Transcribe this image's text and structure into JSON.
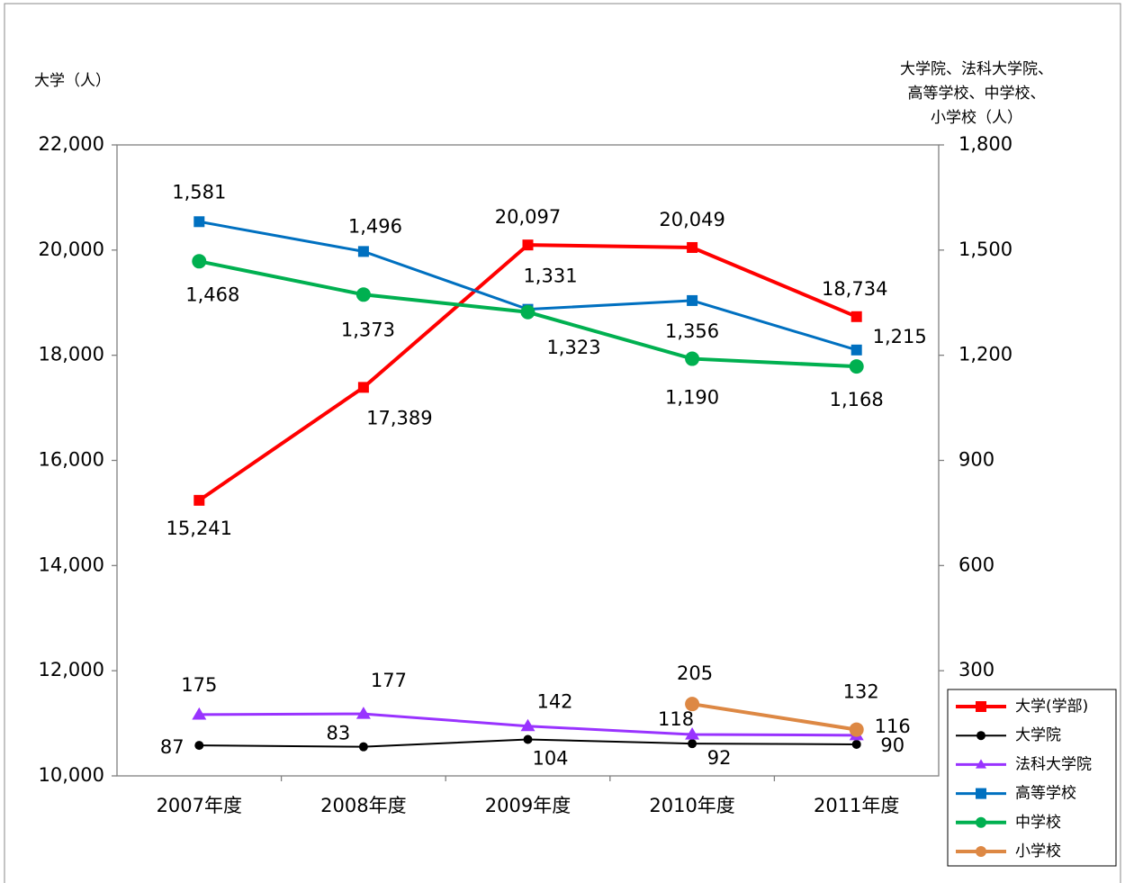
{
  "chart_data": {
    "type": "line",
    "ylabel": "大学（人）",
    "y2label": [
      "大学院、法科大学院、",
      "高等学校、中学校、",
      "小学校（人）"
    ],
    "categories": [
      "2007年度",
      "2008年度",
      "2009年度",
      "2010年度",
      "2011年度"
    ],
    "ylim": [
      10000,
      22000
    ],
    "yticks": [
      {
        "value": 10000,
        "label": "10,000"
      },
      {
        "value": 12000,
        "label": "12,000"
      },
      {
        "value": 14000,
        "label": "14,000"
      },
      {
        "value": 16000,
        "label": "16,000"
      },
      {
        "value": 18000,
        "label": "18,000"
      },
      {
        "value": 20000,
        "label": "20,000"
      },
      {
        "value": 22000,
        "label": "22,000"
      }
    ],
    "y2lim": [
      0,
      1800
    ],
    "y2ticks": [
      300,
      600,
      900,
      {
        "value": 1200,
        "label": "1,200"
      },
      {
        "value": 1500,
        "label": "1,500"
      },
      {
        "value": 1800,
        "label": "1,800"
      }
    ],
    "legend": "lower right",
    "series": [
      {
        "name": "大学(学部)",
        "color": "#ff0000",
        "marker": "square",
        "values": [
          15241,
          17389,
          20097,
          20049,
          18734
        ],
        "value_labels": [
          "15,241",
          "17,389",
          "20,097",
          "20,049",
          "18,734"
        ]
      },
      {
        "name": "大学院",
        "color": "#000000",
        "marker": "circle",
        "axis": "y2",
        "values": [
          87,
          83,
          104,
          92,
          90
        ]
      },
      {
        "name": "法科大学院",
        "color": "#9933ff",
        "marker": "triangle",
        "axis": "y2",
        "values": [
          175,
          177,
          142,
          118,
          116
        ]
      },
      {
        "name": "高等学校",
        "color": "#0070c0",
        "marker": "square",
        "axis": "y2",
        "values": [
          1581,
          1496,
          1331,
          1356,
          1215
        ],
        "value_labels": [
          "1,581",
          "1,496",
          "1,331",
          "1,356",
          "1,215"
        ]
      },
      {
        "name": "中学校",
        "color": "#00b050",
        "marker": "circle",
        "axis": "y2",
        "values": [
          1468,
          1373,
          1323,
          1190,
          1168
        ],
        "value_labels": [
          "1,468",
          "1,373",
          "1,323",
          "1,190",
          "1,168"
        ]
      },
      {
        "name": "小学校",
        "color": "#dd8844",
        "marker": "circle",
        "axis": "y2",
        "values": [
          null,
          null,
          null,
          205,
          132
        ]
      }
    ]
  }
}
